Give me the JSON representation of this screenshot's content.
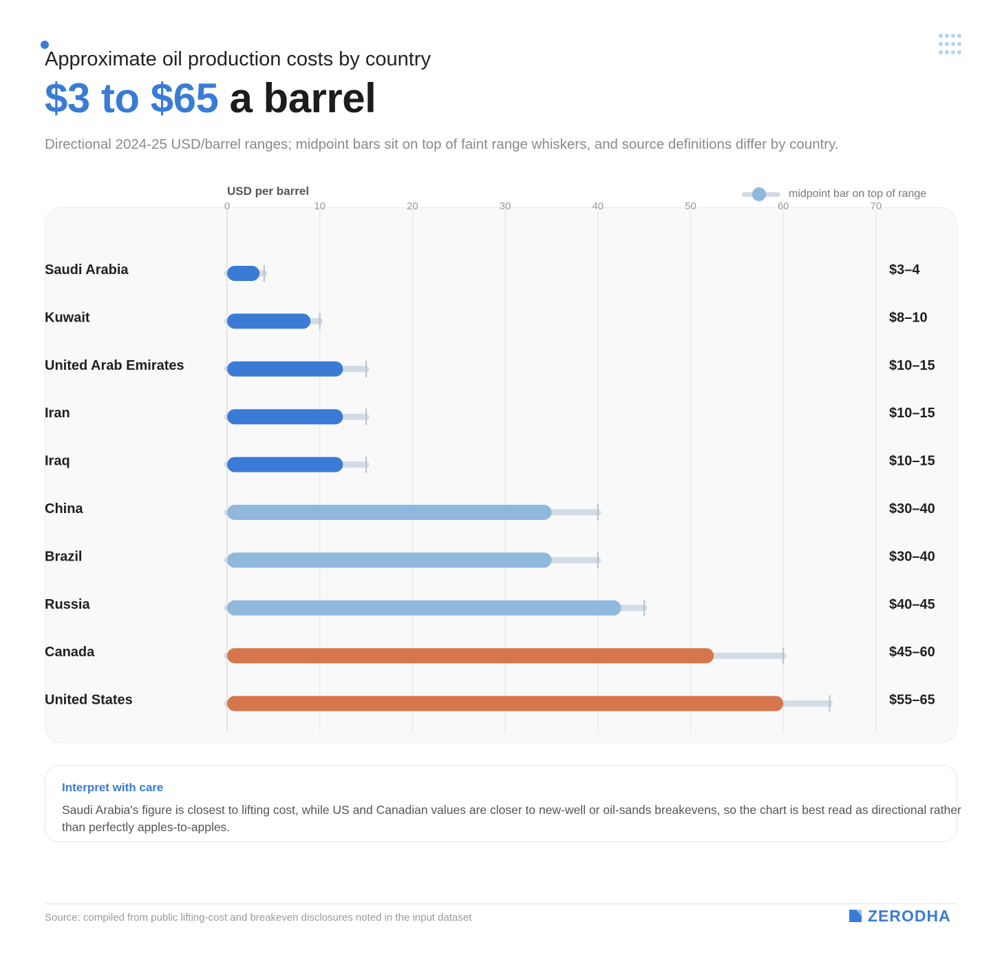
{
  "header": {
    "kicker": "Approximate oil production costs by country",
    "headline_accent": "$3 to $65",
    "headline_rest": "a barrel",
    "subtitle": "Directional 2024-25 USD/barrel ranges; midpoint bars sit on top of faint range whiskers, and source definitions differ by country."
  },
  "legend": {
    "label": "midpoint bar on top of range"
  },
  "colors": {
    "accent": "#3a7bd5",
    "low_cost": "#3a7bd5",
    "mid_cost": "#8fb8dc",
    "high_cost": "#d6764c",
    "whisker": "#d4dbe4",
    "whisker_cap": "#b7c0cc",
    "grid": "#e3e3e3"
  },
  "chart_data": {
    "type": "bar",
    "orientation": "horizontal",
    "ylabel": "USD per barrel",
    "xlim": [
      0,
      70
    ],
    "ticks": [
      0,
      10,
      20,
      30,
      40,
      50,
      60,
      70
    ],
    "grid": true,
    "legend_position": "top-right",
    "rows": [
      {
        "country": "Saudi Arabia",
        "low": 3,
        "high": 4,
        "mid": 3.5,
        "label": "$3–4",
        "tier": "low_cost"
      },
      {
        "country": "Kuwait",
        "low": 8,
        "high": 10,
        "mid": 9,
        "label": "$8–10",
        "tier": "low_cost"
      },
      {
        "country": "United Arab Emirates",
        "low": 10,
        "high": 15,
        "mid": 12.5,
        "label": "$10–15",
        "tier": "low_cost"
      },
      {
        "country": "Iran",
        "low": 10,
        "high": 15,
        "mid": 12.5,
        "label": "$10–15",
        "tier": "low_cost"
      },
      {
        "country": "Iraq",
        "low": 10,
        "high": 15,
        "mid": 12.5,
        "label": "$10–15",
        "tier": "low_cost"
      },
      {
        "country": "China",
        "low": 30,
        "high": 40,
        "mid": 35,
        "label": "$30–40",
        "tier": "mid_cost"
      },
      {
        "country": "Brazil",
        "low": 30,
        "high": 40,
        "mid": 35,
        "label": "$30–40",
        "tier": "mid_cost"
      },
      {
        "country": "Russia",
        "low": 40,
        "high": 45,
        "mid": 42.5,
        "label": "$40–45",
        "tier": "mid_cost"
      },
      {
        "country": "Canada",
        "low": 45,
        "high": 60,
        "mid": 52.5,
        "label": "$45–60",
        "tier": "high_cost"
      },
      {
        "country": "United States",
        "low": 55,
        "high": 65,
        "mid": 60,
        "label": "$55–65",
        "tier": "high_cost"
      }
    ]
  },
  "note": {
    "title": "Interpret with care",
    "body": "Saudi Arabia's figure is closest to lifting cost, while US and Canadian values are closer to new-well or oil-sands breakevens, so the chart is best read as directional rather than perfectly apples-to-apples."
  },
  "footer": {
    "source": "Source: compiled from public lifting-cost and breakeven disclosures noted in the input dataset",
    "brand": "ZERODHA"
  }
}
